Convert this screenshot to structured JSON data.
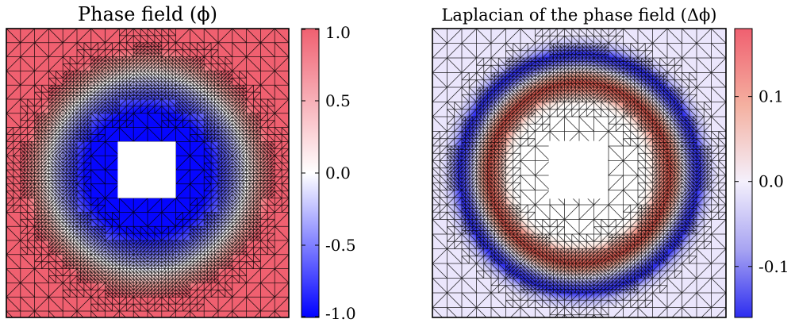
{
  "chart_data": [
    {
      "type": "heatmap",
      "title": "Phase field (ϕ)",
      "colormap": [
        "#0000ff",
        "#ffffff",
        "#f06070"
      ],
      "colorbar": {
        "min": -1.0,
        "max": 1.0,
        "ticks": [
          1.0,
          0.5,
          0.0,
          -0.5,
          -1.0
        ],
        "tick_labels": [
          "1.0",
          "0.5",
          "0.0",
          "-0.5",
          "-1.0"
        ]
      },
      "field": {
        "inner_value": -1.0,
        "outer_value": 1.0,
        "interface_radius": 0.35,
        "interface_width": 0.08,
        "hole_half_size": 0.1
      }
    },
    {
      "type": "heatmap",
      "title": "Laplacian of the phase field (Δϕ)",
      "colormap": [
        "#2d2df0",
        "#ffffff",
        "#f06070"
      ],
      "colorbar": {
        "min": -0.16,
        "max": 0.18,
        "ticks": [
          0.1,
          0.0,
          -0.1
        ],
        "tick_labels": [
          "0.1",
          "0.0",
          "-0.1"
        ]
      },
      "field": {
        "interface_radius": 0.35,
        "interface_width": 0.08,
        "hole_half_size": 0.1
      }
    }
  ],
  "colors": {
    "mesh_line": "#000000",
    "hole": "#ffffff",
    "frame": "#000000"
  }
}
